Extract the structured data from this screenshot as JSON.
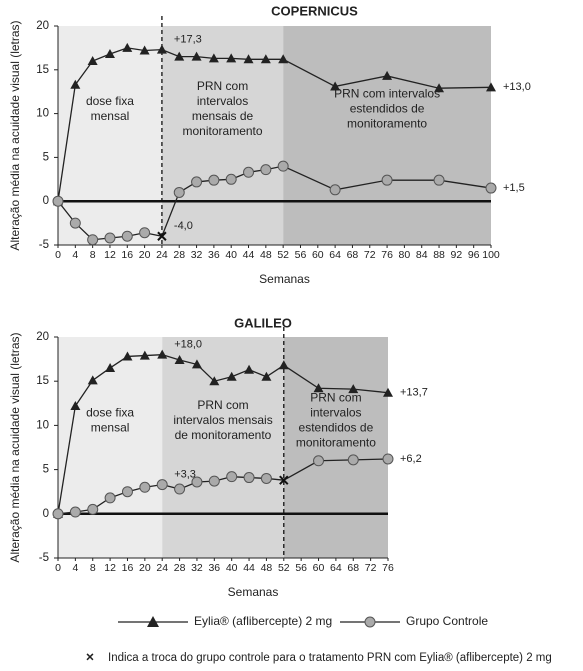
{
  "chart_data": [
    {
      "type": "line",
      "title": "COPERNICUS",
      "x_label": "Semanas",
      "y_label": "Alteração média na acuidade visual (letras)",
      "x": [
        0,
        4,
        8,
        12,
        16,
        20,
        24,
        28,
        32,
        36,
        40,
        44,
        48,
        52,
        64,
        76,
        88,
        100
      ],
      "series": [
        {
          "name": "Eylia® (aflibercepte) 2 mg",
          "color": "#222222",
          "marker": "triangle",
          "values": [
            0,
            13.3,
            16,
            16.8,
            17.5,
            17.2,
            17.3,
            16.5,
            16.5,
            16.3,
            16.3,
            16.2,
            16.2,
            16.2,
            13.1,
            14.3,
            12.9,
            13.0
          ]
        },
        {
          "name": "Grupo Controle",
          "color": "#aaaaaa",
          "marker": "circle",
          "values": [
            0,
            -2.5,
            -4.4,
            -4.2,
            -4.0,
            -3.6,
            -4.0,
            1.0,
            2.2,
            2.4,
            2.5,
            3.3,
            3.6,
            4.0,
            1.3,
            2.4,
            2.4,
            1.5
          ]
        }
      ],
      "switch_x": 24,
      "phases": [
        {
          "label": [
            "dose fixa",
            "mensal"
          ],
          "start": 0,
          "end": 24,
          "color": "#ececec"
        },
        {
          "label": [
            "PRN com",
            "intervalos",
            "mensais de",
            "monitoramento"
          ],
          "start": 24,
          "end": 52,
          "color": "#d6d6d6"
        },
        {
          "label": [
            "PRN com intervalos",
            "estendidos de",
            "monitoramento"
          ],
          "start": 52,
          "end": 100,
          "color": "#bdbdbd"
        }
      ],
      "annotations": [
        {
          "text": "+17,3",
          "x": 24,
          "y": 17.3
        },
        {
          "text": "-4,0",
          "x": 24,
          "y": -4.0
        },
        {
          "text": "+13,0",
          "x": 100,
          "y": 13.0
        },
        {
          "text": "+1,5",
          "x": 100,
          "y": 1.5
        }
      ],
      "xlim": [
        0,
        100
      ],
      "xticks": [
        0,
        4,
        8,
        12,
        16,
        20,
        24,
        28,
        32,
        36,
        40,
        44,
        48,
        52,
        56,
        60,
        64,
        68,
        72,
        76,
        80,
        84,
        88,
        92,
        96,
        100
      ],
      "ylim": [
        -5,
        20
      ],
      "yticks": [
        -5,
        0,
        5,
        10,
        15,
        20
      ]
    },
    {
      "type": "line",
      "title": "GALILEO",
      "x_label": "Semanas",
      "y_label": "Alteração média na acuidade visual (letras)",
      "x": [
        0,
        4,
        8,
        12,
        16,
        20,
        24,
        28,
        32,
        36,
        40,
        44,
        48,
        52,
        60,
        68,
        76
      ],
      "series": [
        {
          "name": "Eylia® (aflibercepte) 2 mg",
          "color": "#222222",
          "marker": "triangle",
          "values": [
            0,
            12.2,
            15.1,
            16.5,
            17.8,
            17.9,
            18.0,
            17.4,
            16.9,
            15.0,
            15.5,
            16.3,
            15.5,
            16.8,
            14.2,
            14.1,
            13.7
          ]
        },
        {
          "name": "Grupo Controle",
          "color": "#aaaaaa",
          "marker": "circle",
          "values": [
            0,
            0.2,
            0.5,
            1.8,
            2.5,
            3.0,
            3.3,
            2.8,
            3.6,
            3.7,
            4.2,
            4.1,
            4.0,
            3.8,
            6.0,
            6.1,
            6.2
          ]
        }
      ],
      "switch_x": 52,
      "phases": [
        {
          "label": [
            "dose fixa",
            "mensal"
          ],
          "start": 0,
          "end": 24,
          "color": "#ececec"
        },
        {
          "label": [
            "PRN com",
            "intervalos mensais",
            "de monitoramento"
          ],
          "start": 24,
          "end": 52,
          "color": "#d6d6d6"
        },
        {
          "label": [
            "PRN com",
            "intervalos",
            "estendidos de",
            "monitoramento"
          ],
          "start": 52,
          "end": 76,
          "color": "#bdbdbd"
        }
      ],
      "annotations": [
        {
          "text": "+18,0",
          "x": 24,
          "y": 18.0
        },
        {
          "text": "+3,3",
          "x": 24,
          "y": 3.3
        },
        {
          "text": "+13,7",
          "x": 76,
          "y": 13.7
        },
        {
          "text": "+6,2",
          "x": 76,
          "y": 6.2
        }
      ],
      "xlim": [
        0,
        76
      ],
      "xticks": [
        0,
        4,
        8,
        12,
        16,
        20,
        24,
        28,
        32,
        36,
        40,
        44,
        48,
        52,
        56,
        60,
        64,
        68,
        72,
        76
      ],
      "ylim": [
        -5,
        20
      ],
      "yticks": [
        -5,
        0,
        5,
        10,
        15,
        20
      ]
    }
  ],
  "footnote": {
    "symbol": "×",
    "text": "Indica a troca do grupo controle para o tratamento PRN com Eylia® (aflibercepte) 2 mg"
  }
}
